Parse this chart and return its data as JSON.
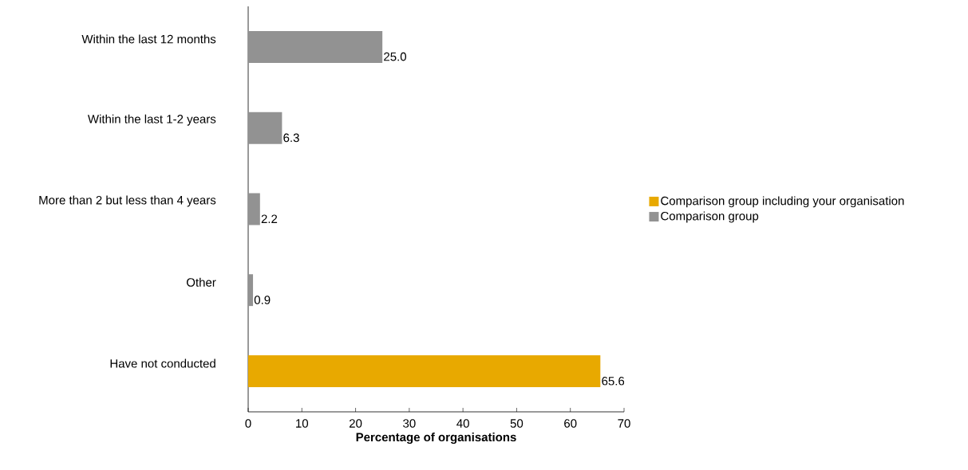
{
  "chart_data": {
    "type": "bar",
    "orientation": "horizontal",
    "xlabel": "Percentage of organisations",
    "categories": [
      "Within the last 12 months",
      "Within the last 1-2 years",
      "More than 2 but less than 4 years",
      "Other",
      "Have not conducted"
    ],
    "series": [
      {
        "name": "Comparison group including your organisation",
        "color": "#e8a900",
        "values": [
          null,
          null,
          null,
          null,
          65.6
        ],
        "value_labels": [
          null,
          null,
          null,
          null,
          "65.6"
        ]
      },
      {
        "name": "Comparison group",
        "color": "#929292",
        "values": [
          25.0,
          6.3,
          2.2,
          0.9,
          null
        ],
        "value_labels": [
          "25.0",
          "6.3",
          "2.2",
          "0.9",
          null
        ]
      }
    ],
    "xlim": [
      0,
      70
    ],
    "xticks": [
      0,
      10,
      20,
      30,
      40,
      50,
      60,
      70
    ],
    "grid": false,
    "legend": "right"
  }
}
